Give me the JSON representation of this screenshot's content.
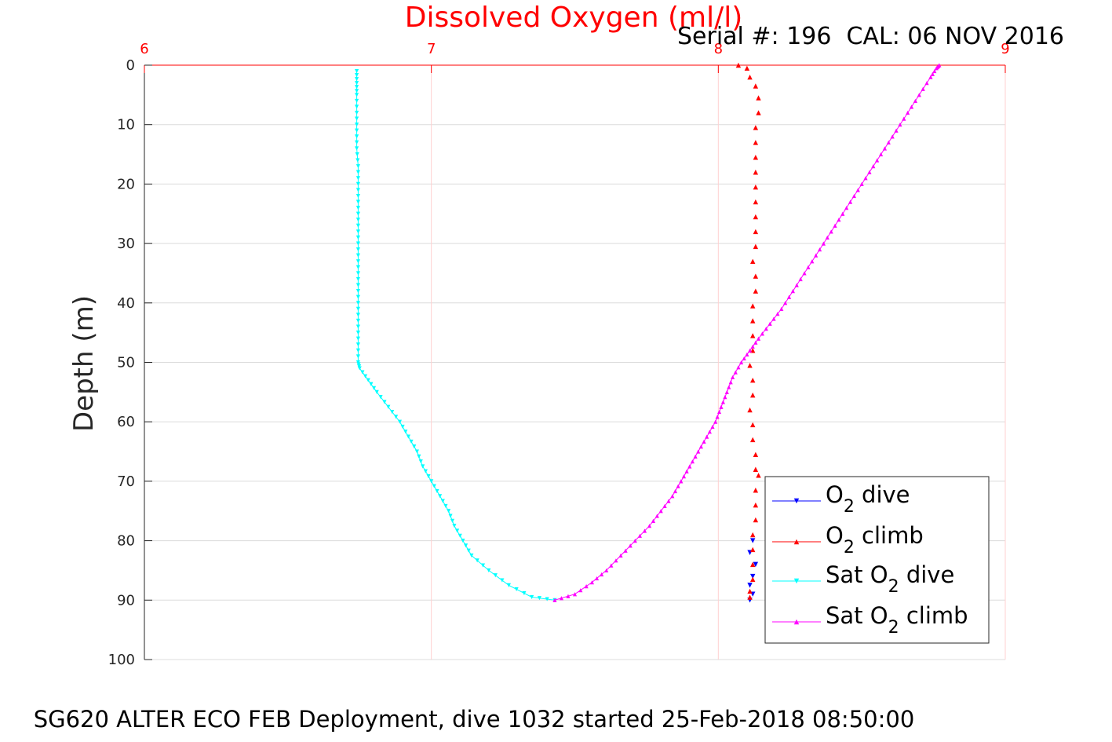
{
  "chart_data": {
    "type": "line",
    "title": "Dissolved Oxygen (ml/l)",
    "subtitle": "Serial #: 196  CAL: 06 NOV 2016",
    "caption": "SG620 ALTER ECO FEB Deployment, dive 1032 started 25-Feb-2018 08:50:00",
    "ylabel": "Depth (m)",
    "xlim": [
      6,
      9
    ],
    "ylim": [
      0,
      100
    ],
    "y_reversed": true,
    "x_axis_position": "top",
    "xticks": [
      "6",
      "7",
      "8",
      "9"
    ],
    "yticks": [
      "0",
      "10",
      "20",
      "30",
      "40",
      "50",
      "60",
      "70",
      "80",
      "90",
      "100"
    ],
    "grid": true,
    "legend_position": "bottom-right",
    "colors": {
      "o2_dive": "#0000ff",
      "o2_climb": "#ff0000",
      "sat_dive": "#00ffff",
      "sat_climb": "#ff00ff",
      "title": "#ff0000",
      "grid_x": "#ffd0d0",
      "grid_y": "#dcdcdc"
    },
    "series": [
      {
        "key": "o2_dive",
        "legend": {
          "pre": "O",
          "sub": "2",
          "post": " dive"
        },
        "color": "#0000ff",
        "marker": "triangle-down",
        "line": false,
        "points": [
          [
            8.12,
            80.0
          ],
          [
            8.11,
            82.0
          ],
          [
            8.13,
            84.0
          ],
          [
            8.12,
            86.0
          ],
          [
            8.11,
            87.5
          ],
          [
            8.12,
            89.0
          ],
          [
            8.11,
            90.0
          ]
        ]
      },
      {
        "key": "o2_climb",
        "legend": {
          "pre": "O",
          "sub": "2",
          "post": " climb"
        },
        "color": "#ff0000",
        "marker": "triangle-up",
        "line": false,
        "points": [
          [
            8.07,
            0.0
          ],
          [
            8.1,
            0.5
          ],
          [
            8.11,
            2.0
          ],
          [
            8.13,
            3.5
          ],
          [
            8.14,
            5.5
          ],
          [
            8.14,
            8.0
          ],
          [
            8.13,
            10.5
          ],
          [
            8.13,
            13.0
          ],
          [
            8.13,
            15.5
          ],
          [
            8.13,
            18.0
          ],
          [
            8.13,
            20.5
          ],
          [
            8.13,
            23.0
          ],
          [
            8.13,
            25.5
          ],
          [
            8.13,
            28.0
          ],
          [
            8.13,
            30.5
          ],
          [
            8.12,
            33.0
          ],
          [
            8.13,
            35.5
          ],
          [
            8.13,
            38.0
          ],
          [
            8.12,
            40.5
          ],
          [
            8.12,
            43.0
          ],
          [
            8.12,
            45.5
          ],
          [
            8.12,
            48.0
          ],
          [
            8.11,
            50.5
          ],
          [
            8.12,
            53.0
          ],
          [
            8.12,
            55.5
          ],
          [
            8.11,
            58.0
          ],
          [
            8.12,
            60.5
          ],
          [
            8.12,
            63.0
          ],
          [
            8.13,
            65.5
          ],
          [
            8.13,
            68.0
          ],
          [
            8.14,
            69.0
          ],
          [
            8.13,
            71.5
          ],
          [
            8.13,
            74.0
          ],
          [
            8.13,
            76.5
          ],
          [
            8.12,
            79.0
          ],
          [
            8.12,
            81.5
          ],
          [
            8.12,
            84.0
          ],
          [
            8.12,
            86.5
          ],
          [
            8.11,
            88.5
          ],
          [
            8.11,
            89.5
          ]
        ]
      },
      {
        "key": "sat_dive",
        "legend": {
          "pre": "Sat O",
          "sub": "2",
          "post": " dive"
        },
        "color": "#00ffff",
        "marker": "triangle-down",
        "line": true,
        "points": [
          [
            6.74,
            1.0
          ],
          [
            6.74,
            3.0
          ],
          [
            6.74,
            5.0
          ],
          [
            6.74,
            8.0
          ],
          [
            6.74,
            11.0
          ],
          [
            6.74,
            14.0
          ],
          [
            6.745,
            17.0
          ],
          [
            6.745,
            20.0
          ],
          [
            6.745,
            23.0
          ],
          [
            6.745,
            26.0
          ],
          [
            6.745,
            29.0
          ],
          [
            6.745,
            32.0
          ],
          [
            6.745,
            35.0
          ],
          [
            6.745,
            38.0
          ],
          [
            6.745,
            41.0
          ],
          [
            6.745,
            44.0
          ],
          [
            6.745,
            47.0
          ],
          [
            6.745,
            50.0
          ],
          [
            6.75,
            51.0
          ],
          [
            6.78,
            53.0
          ],
          [
            6.81,
            55.0
          ],
          [
            6.85,
            57.5
          ],
          [
            6.89,
            60.0
          ],
          [
            6.92,
            62.5
          ],
          [
            6.95,
            65.0
          ],
          [
            6.97,
            67.5
          ],
          [
            7.0,
            70.0
          ],
          [
            7.03,
            72.5
          ],
          [
            7.06,
            75.0
          ],
          [
            7.08,
            77.5
          ],
          [
            7.11,
            80.0
          ],
          [
            7.14,
            82.5
          ],
          [
            7.2,
            85.0
          ],
          [
            7.27,
            87.5
          ],
          [
            7.35,
            89.5
          ],
          [
            7.43,
            90.0
          ]
        ]
      },
      {
        "key": "sat_climb",
        "legend": {
          "pre": "Sat O",
          "sub": "2",
          "post": " climb"
        },
        "color": "#ff00ff",
        "marker": "triangle-up",
        "line": true,
        "points": [
          [
            7.43,
            90.0
          ],
          [
            7.5,
            89.0
          ],
          [
            7.56,
            87.0
          ],
          [
            7.61,
            85.0
          ],
          [
            7.66,
            82.5
          ],
          [
            7.71,
            80.0
          ],
          [
            7.76,
            77.5
          ],
          [
            7.8,
            75.0
          ],
          [
            7.84,
            72.5
          ],
          [
            7.87,
            70.0
          ],
          [
            7.9,
            67.5
          ],
          [
            7.93,
            65.0
          ],
          [
            7.96,
            62.5
          ],
          [
            7.99,
            60.0
          ],
          [
            8.01,
            57.5
          ],
          [
            8.03,
            55.0
          ],
          [
            8.05,
            52.5
          ],
          [
            8.08,
            50.0
          ],
          [
            8.11,
            48.0
          ],
          [
            8.14,
            46.0
          ],
          [
            8.18,
            43.5
          ],
          [
            8.22,
            41.0
          ],
          [
            8.26,
            38.0
          ],
          [
            8.3,
            35.0
          ],
          [
            8.34,
            32.0
          ],
          [
            8.38,
            29.0
          ],
          [
            8.42,
            26.0
          ],
          [
            8.46,
            23.0
          ],
          [
            8.5,
            20.0
          ],
          [
            8.54,
            17.0
          ],
          [
            8.58,
            14.0
          ],
          [
            8.62,
            11.0
          ],
          [
            8.66,
            8.0
          ],
          [
            8.7,
            5.0
          ],
          [
            8.74,
            2.0
          ],
          [
            8.76,
            0.5
          ],
          [
            8.77,
            0.0
          ]
        ]
      }
    ]
  }
}
